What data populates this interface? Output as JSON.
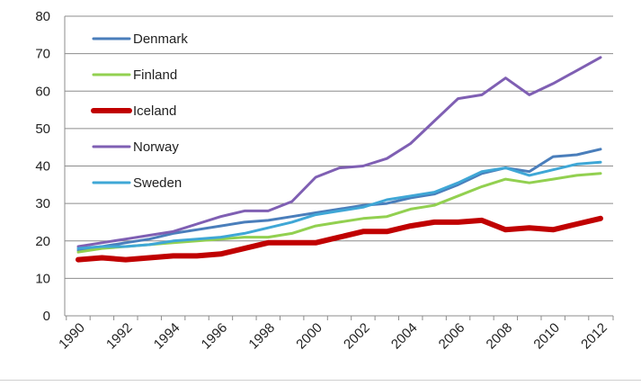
{
  "chart_data": {
    "type": "line",
    "title": "",
    "xlabel": "",
    "ylabel": "",
    "x": [
      1990,
      1991,
      1992,
      1993,
      1994,
      1995,
      1996,
      1997,
      1998,
      1999,
      2000,
      2001,
      2002,
      2003,
      2004,
      2005,
      2006,
      2007,
      2008,
      2009,
      2010,
      2011,
      2012
    ],
    "x_tick_labels": [
      "1990",
      "1992",
      "1994",
      "1996",
      "1998",
      "2000",
      "2002",
      "2004",
      "2006",
      "2008",
      "2010",
      "2012"
    ],
    "x_tick_values": [
      1990,
      1992,
      1994,
      1996,
      1998,
      2000,
      2002,
      2004,
      2006,
      2008,
      2010,
      2012
    ],
    "ylim": [
      0,
      80
    ],
    "y_ticks": [
      0,
      10,
      20,
      30,
      40,
      50,
      60,
      70,
      80
    ],
    "y_tick_labels": [
      "0",
      "10",
      "20",
      "30",
      "40",
      "50",
      "60",
      "70",
      "80"
    ],
    "grid": "horizontal",
    "legend_position": "top-left",
    "series": [
      {
        "name": "Denmark",
        "color": "#4a7ebb",
        "width": 3,
        "values": [
          17.5,
          18.5,
          19.5,
          20.5,
          22,
          23,
          24,
          25,
          25.5,
          26.5,
          27.5,
          28.5,
          29.5,
          30,
          31.5,
          32.5,
          35,
          38,
          39.5,
          38.5,
          42.5,
          43,
          44.5
        ]
      },
      {
        "name": "Finland",
        "color": "#92d050",
        "width": 3,
        "values": [
          17,
          18,
          18.5,
          19,
          19.5,
          20,
          20.5,
          21,
          21,
          22,
          24,
          25,
          26,
          26.5,
          28.5,
          29.5,
          32,
          34.5,
          36.5,
          35.5,
          36.5,
          37.5,
          38
        ]
      },
      {
        "name": "Iceland",
        "color": "#c00000",
        "width": 6,
        "values": [
          15,
          15.5,
          15,
          15.5,
          16,
          16,
          16.5,
          18,
          19.5,
          19.5,
          19.5,
          21,
          22.5,
          22.5,
          24,
          25,
          25,
          25.5,
          23,
          23.5,
          23,
          24.5,
          26
        ]
      },
      {
        "name": "Norway",
        "color": "#7f5fb3",
        "width": 3,
        "values": [
          18.5,
          19.5,
          20.5,
          21.5,
          22.5,
          24.5,
          26.5,
          28,
          28,
          30.5,
          37,
          39.5,
          40,
          42,
          46,
          52,
          58,
          59,
          63.5,
          59,
          62,
          65.5,
          69
        ]
      },
      {
        "name": "Sweden",
        "color": "#3fa7d6",
        "width": 3,
        "values": [
          18,
          18.5,
          18.5,
          19,
          20,
          20.5,
          21,
          22,
          23.5,
          25,
          27,
          28,
          29,
          31,
          32,
          33,
          35.5,
          38.5,
          39.5,
          37.5,
          39,
          40.5,
          41
        ]
      }
    ]
  }
}
